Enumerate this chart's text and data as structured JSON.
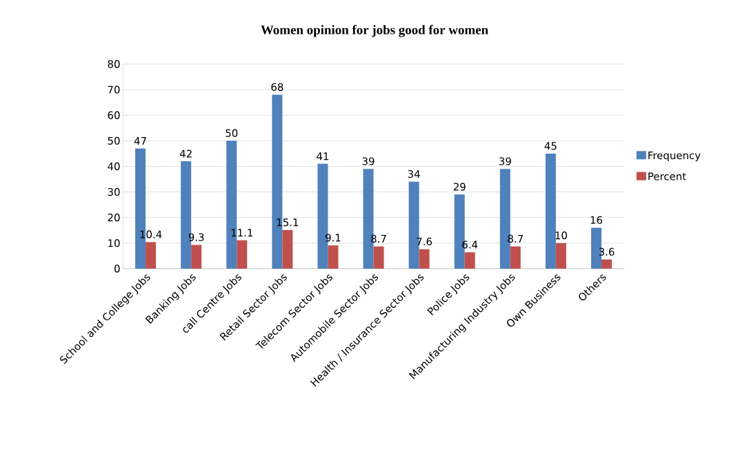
{
  "chart_data": {
    "type": "bar",
    "title": "Women opinion for jobs good for women",
    "categories": [
      "School and College Jobs",
      "Banking Jobs",
      "call Centre Jobs",
      "Retail Sector Jobs",
      "Telecom Sector Jobs",
      "Automobile Sector Jobs",
      "Health / Insurance Sector Jobs",
      "Police Jobs",
      "Manufacturing Industry Jobs",
      "Own Business",
      "Others"
    ],
    "series": [
      {
        "name": "Frequency",
        "color": "#4f81bd",
        "values": [
          47,
          42,
          50,
          68,
          41,
          39,
          34,
          29,
          39,
          45,
          16
        ]
      },
      {
        "name": "Percent",
        "color": "#c0504d",
        "values": [
          10.4,
          9.3,
          11.1,
          15.1,
          9.1,
          8.7,
          7.6,
          6.4,
          8.7,
          10,
          3.6
        ]
      }
    ],
    "ylim": [
      0,
      80
    ],
    "yticks": [
      0,
      10,
      20,
      30,
      40,
      50,
      60,
      70,
      80
    ],
    "grid": "y",
    "legend": "right",
    "data_labels": true
  }
}
